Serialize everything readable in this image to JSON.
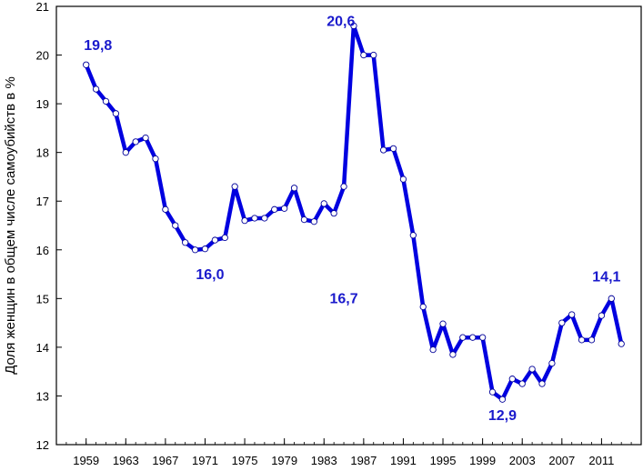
{
  "chart_data": {
    "type": "line",
    "title": "",
    "xlabel": "",
    "ylabel": "Доля женщин в общем числе самоубийств в %",
    "xlim": [
      1956,
      2015
    ],
    "ylim": [
      12,
      21
    ],
    "x_ticks": [
      1959,
      1963,
      1967,
      1971,
      1975,
      1979,
      1983,
      1987,
      1991,
      1995,
      1999,
      2003,
      2007,
      2011
    ],
    "x_ticks_display": [
      "1959",
      "1963",
      "1967",
      "1971",
      "1975",
      "1979",
      "1983",
      "1987",
      "1991",
      "1995",
      "1999",
      "2003",
      "2007",
      "2011"
    ],
    "y_ticks": [
      12,
      13,
      14,
      15,
      16,
      17,
      18,
      19,
      20,
      21
    ],
    "y_ticks_display": [
      "12",
      "13",
      "14",
      "15",
      "16",
      "17",
      "18",
      "19",
      "20",
      "21"
    ],
    "grid": false,
    "legend": "none",
    "colors": {
      "line": "#0000e0",
      "marker_fill": "#ffffff",
      "marker_stroke": "#000099",
      "annotation": "#1a1acc"
    },
    "series": [
      {
        "x": [
          1959,
          1960,
          1961,
          1962,
          1963,
          1964,
          1965,
          1966,
          1967,
          1968,
          1969,
          1970,
          1971,
          1972,
          1973,
          1974,
          1975,
          1976,
          1977,
          1978,
          1979,
          1980,
          1981,
          1982,
          1983,
          1984,
          1985,
          1986,
          1987,
          1988,
          1989,
          1990,
          1991,
          1992,
          1993,
          1994,
          1995,
          1996,
          1997,
          1998,
          1999,
          2000,
          2001,
          2002,
          2003,
          2004,
          2005,
          2006,
          2007,
          2008,
          2009,
          2010,
          2011,
          2012,
          2013
        ],
        "y": [
          19.8,
          19.3,
          19.05,
          18.8,
          18.0,
          18.22,
          18.3,
          17.87,
          16.83,
          16.5,
          16.15,
          16.0,
          16.02,
          16.2,
          16.25,
          17.3,
          16.6,
          16.65,
          16.65,
          16.83,
          16.85,
          17.27,
          16.62,
          16.58,
          16.95,
          16.75,
          17.3,
          20.6,
          20.0,
          20.0,
          18.05,
          18.08,
          17.45,
          16.3,
          14.83,
          13.95,
          14.48,
          13.85,
          14.2,
          14.2,
          14.2,
          13.08,
          12.93,
          13.35,
          13.25,
          13.55,
          13.25,
          13.67,
          14.5,
          14.67,
          14.15,
          14.15,
          14.65,
          15.0,
          14.07
        ]
      }
    ],
    "annotations": [
      {
        "text": "19,8",
        "x": 1960.2,
        "y": 20.1
      },
      {
        "text": "20,6",
        "x": 1984.7,
        "y": 20.6
      },
      {
        "text": "16,7",
        "x": 1985.0,
        "y": 14.9
      },
      {
        "text": "16,0",
        "x": 1971.5,
        "y": 15.4
      },
      {
        "text": "12,9",
        "x": 2001.0,
        "y": 12.5
      },
      {
        "text": "14,1",
        "x": 2011.5,
        "y": 15.35
      }
    ]
  }
}
